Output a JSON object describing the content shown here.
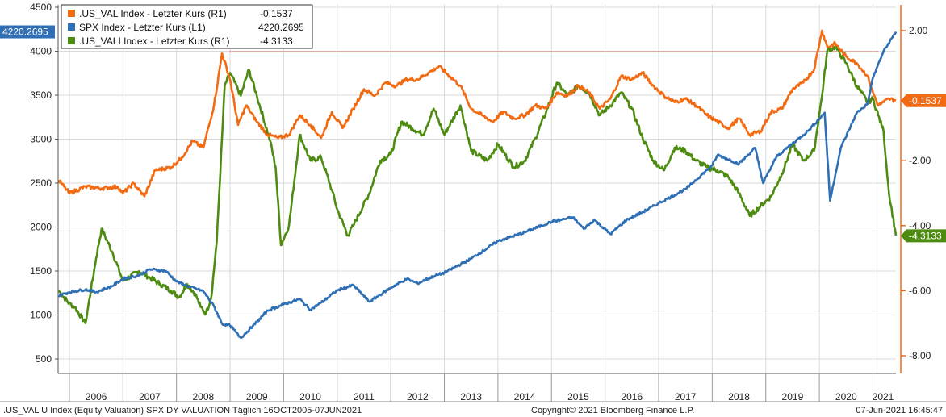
{
  "colors": {
    "us_val": "#f26b12",
    "spx": "#2e6fb5",
    "us_vali": "#4e8c11",
    "refline": "#d62020",
    "grid": "#d9d9d9"
  },
  "legend": [
    {
      "key": "us_val",
      "label": ".US_VAL Index - Letzter Kurs (R1)",
      "value": "-0.1537"
    },
    {
      "key": "spx",
      "label": "SPX Index - Letzter Kurs (L1)",
      "value": "4220.2695"
    },
    {
      "key": "us_vali",
      "label": ".US_VALI Index - Letzter Kurs (R1)",
      "value": "-4.3133"
    }
  ],
  "flags": {
    "spx": "4220.2695",
    "us_val": "-0.1537",
    "us_vali": "-4.3133"
  },
  "footer": {
    "left": ".US_VAL U Index (Equity Valuation) SPX DY VALUATION  Täglich 16OCT2005-07JUN2021",
    "center": "Copyright© 2021 Bloomberg Finance L.P.",
    "right": "07-Jun-2021  16:45:47"
  },
  "chart_data": {
    "type": "line",
    "title": "",
    "x_range": [
      2005.79,
      2021.43
    ],
    "left_axis": {
      "ticks": [
        500,
        1000,
        1500,
        2000,
        2500,
        3000,
        3500,
        4000,
        4500
      ],
      "ylim": [
        500,
        4500
      ]
    },
    "right_axis": {
      "ticks": [
        2.0,
        -2.0,
        -4.0,
        -6.0,
        -8.0
      ],
      "tick_labels": [
        "2.00",
        "-2.00",
        "-4.00",
        "-6.00",
        "-8.00"
      ],
      "ylim": [
        -8.0,
        2.0
      ]
    },
    "x_tick_labels": [
      "2006",
      "2007",
      "2008",
      "2009",
      "2010",
      "2011",
      "2012",
      "2013",
      "2014",
      "2015",
      "2016",
      "2017",
      "2018",
      "2019",
      "2020",
      "2021"
    ],
    "reference_line": {
      "axis": "right",
      "value": 1.35
    },
    "series": [
      {
        "name": ".US_VAL Index - Letzter Kurs (R1)",
        "axis": "right",
        "x": [
          2005.8,
          2006.0,
          2006.3,
          2006.6,
          2006.9,
          2007.0,
          2007.2,
          2007.4,
          2007.6,
          2007.9,
          2008.1,
          2008.3,
          2008.5,
          2008.7,
          2008.85,
          2009.0,
          2009.15,
          2009.3,
          2009.5,
          2009.7,
          2009.9,
          2010.1,
          2010.3,
          2010.5,
          2010.7,
          2010.9,
          2011.1,
          2011.3,
          2011.5,
          2011.7,
          2011.9,
          2012.1,
          2012.3,
          2012.5,
          2012.7,
          2012.9,
          2013.1,
          2013.3,
          2013.5,
          2013.7,
          2013.9,
          2014.1,
          2014.3,
          2014.5,
          2014.7,
          2014.9,
          2015.1,
          2015.3,
          2015.5,
          2015.7,
          2015.9,
          2016.1,
          2016.3,
          2016.5,
          2016.7,
          2016.9,
          2017.1,
          2017.3,
          2017.5,
          2017.7,
          2017.9,
          2018.1,
          2018.3,
          2018.5,
          2018.7,
          2018.9,
          2019.1,
          2019.3,
          2019.5,
          2019.7,
          2019.9,
          2020.05,
          2020.15,
          2020.3,
          2020.5,
          2020.7,
          2020.9,
          2021.0,
          2021.1,
          2021.2,
          2021.3,
          2021.43
        ],
        "y": [
          -2.6,
          -3.0,
          -2.8,
          -2.85,
          -2.8,
          -3.0,
          -2.7,
          -3.1,
          -2.3,
          -2.2,
          -1.9,
          -1.4,
          -1.6,
          -0.3,
          1.3,
          0.5,
          -0.9,
          -0.3,
          -0.8,
          -1.2,
          -1.3,
          -1.2,
          -0.6,
          -0.9,
          -1.3,
          -0.5,
          -1.0,
          -0.4,
          0.2,
          0.0,
          0.4,
          0.3,
          0.5,
          0.5,
          0.7,
          0.9,
          0.6,
          0.3,
          -0.4,
          -0.6,
          -0.8,
          -0.5,
          -0.7,
          -0.6,
          -0.3,
          -0.4,
          0.1,
          0.0,
          0.3,
          0.1,
          -0.4,
          -0.1,
          0.6,
          0.5,
          0.7,
          0.3,
          0.0,
          -0.2,
          -0.1,
          -0.3,
          -0.6,
          -0.8,
          -1.0,
          -0.7,
          -1.2,
          -1.1,
          -0.5,
          -0.4,
          0.2,
          0.4,
          0.8,
          2.0,
          1.5,
          1.6,
          1.2,
          1.0,
          0.6,
          0.1,
          -0.3,
          -0.2,
          -0.1,
          -0.15
        ]
      },
      {
        "name": "SPX Index - Letzter Kurs (L1)",
        "axis": "left",
        "x": [
          2005.8,
          2006.0,
          2006.3,
          2006.5,
          2006.8,
          2007.0,
          2007.3,
          2007.5,
          2007.8,
          2008.0,
          2008.2,
          2008.5,
          2008.7,
          2008.85,
          2009.0,
          2009.2,
          2009.5,
          2009.7,
          2010.0,
          2010.3,
          2010.5,
          2010.7,
          2011.0,
          2011.3,
          2011.6,
          2011.8,
          2012.0,
          2012.3,
          2012.5,
          2012.8,
          2013.0,
          2013.5,
          2014.0,
          2014.5,
          2015.0,
          2015.4,
          2015.6,
          2015.8,
          2016.1,
          2016.4,
          2016.7,
          2017.0,
          2017.5,
          2018.0,
          2018.1,
          2018.5,
          2018.8,
          2018.95,
          2019.2,
          2019.5,
          2019.8,
          2020.1,
          2020.2,
          2020.4,
          2020.7,
          2020.9,
          2021.0,
          2021.2,
          2021.43
        ],
        "y": [
          1220,
          1260,
          1290,
          1260,
          1330,
          1410,
          1450,
          1520,
          1500,
          1380,
          1330,
          1270,
          1100,
          900,
          880,
          740,
          920,
          1050,
          1120,
          1180,
          1060,
          1140,
          1280,
          1340,
          1150,
          1230,
          1310,
          1410,
          1360,
          1440,
          1480,
          1640,
          1840,
          1940,
          2060,
          2110,
          1980,
          2080,
          1920,
          2080,
          2170,
          2270,
          2430,
          2700,
          2820,
          2720,
          2900,
          2500,
          2800,
          2950,
          3100,
          3300,
          2300,
          2900,
          3300,
          3400,
          3700,
          4000,
          4220
        ]
      },
      {
        "name": ".US_VALI Index - Letzter Kurs (R1)",
        "axis": "right",
        "x": [
          2005.8,
          2006.0,
          2006.1,
          2006.3,
          2006.5,
          2006.6,
          2006.8,
          2007.0,
          2007.3,
          2007.5,
          2007.7,
          2007.9,
          2008.05,
          2008.2,
          2008.35,
          2008.45,
          2008.55,
          2008.65,
          2008.75,
          2008.9,
          2009.0,
          2009.2,
          2009.35,
          2009.5,
          2009.75,
          2009.85,
          2009.95,
          2010.1,
          2010.3,
          2010.5,
          2010.7,
          2010.9,
          2011.0,
          2011.2,
          2011.3,
          2011.6,
          2011.8,
          2012.0,
          2012.2,
          2012.4,
          2012.6,
          2012.8,
          2013.0,
          2013.3,
          2013.5,
          2013.8,
          2014.0,
          2014.3,
          2014.5,
          2014.7,
          2014.9,
          2015.1,
          2015.3,
          2015.5,
          2015.7,
          2015.9,
          2016.1,
          2016.3,
          2016.5,
          2016.7,
          2016.9,
          2017.1,
          2017.3,
          2017.5,
          2017.7,
          2017.9,
          2018.1,
          2018.3,
          2018.5,
          2018.7,
          2018.9,
          2019.1,
          2019.3,
          2019.5,
          2019.7,
          2019.9,
          2020.05,
          2020.15,
          2020.3,
          2020.5,
          2020.7,
          2020.9,
          2021.0,
          2021.1,
          2021.2,
          2021.25,
          2021.3,
          2021.43
        ],
        "y": [
          -6.0,
          -6.4,
          -6.5,
          -7.0,
          -5.0,
          -4.1,
          -4.8,
          -5.7,
          -5.4,
          -5.6,
          -5.8,
          -6.0,
          -6.2,
          -5.8,
          -6.1,
          -6.5,
          -6.7,
          -6.2,
          -4.5,
          0.3,
          0.7,
          0.0,
          0.8,
          0.0,
          -1.4,
          -2.2,
          -4.6,
          -4.0,
          -1.2,
          -2.0,
          -1.9,
          -2.9,
          -3.5,
          -4.3,
          -4.0,
          -3.0,
          -2.0,
          -1.8,
          -0.8,
          -1.0,
          -1.2,
          -0.4,
          -1.2,
          -0.3,
          -1.7,
          -2.0,
          -1.5,
          -2.2,
          -2.0,
          -1.3,
          -0.5,
          0.4,
          0.0,
          0.3,
          0.1,
          -0.6,
          -0.3,
          0.1,
          -0.4,
          -1.3,
          -2.0,
          -2.3,
          -1.6,
          -1.7,
          -2.0,
          -2.2,
          -2.3,
          -2.5,
          -3.0,
          -3.7,
          -3.4,
          -3.1,
          -2.4,
          -1.5,
          -2.0,
          -1.7,
          0.0,
          1.4,
          1.5,
          1.0,
          0.3,
          -0.2,
          -0.1,
          -0.6,
          -1.1,
          -2.1,
          -3.0,
          -4.3
        ]
      }
    ]
  }
}
